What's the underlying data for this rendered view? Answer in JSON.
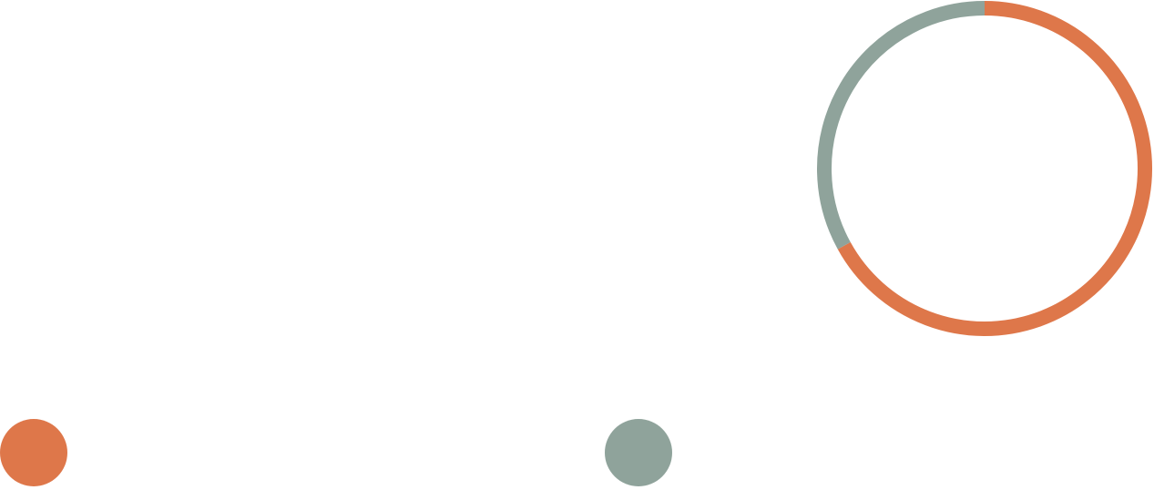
{
  "chart_data": {
    "type": "pie",
    "style": "donut-ring",
    "title": "",
    "series": [
      {
        "value": 67,
        "color": "#DE774A"
      },
      {
        "value": 33,
        "color": "#8FA39B"
      }
    ],
    "start_angle_deg": 0,
    "direction": "clockwise",
    "legend": {
      "placement": "bottom",
      "entries": [
        {
          "label": "",
          "color": "#DE774A"
        },
        {
          "label": "",
          "color": "#8FA39B"
        }
      ]
    }
  }
}
